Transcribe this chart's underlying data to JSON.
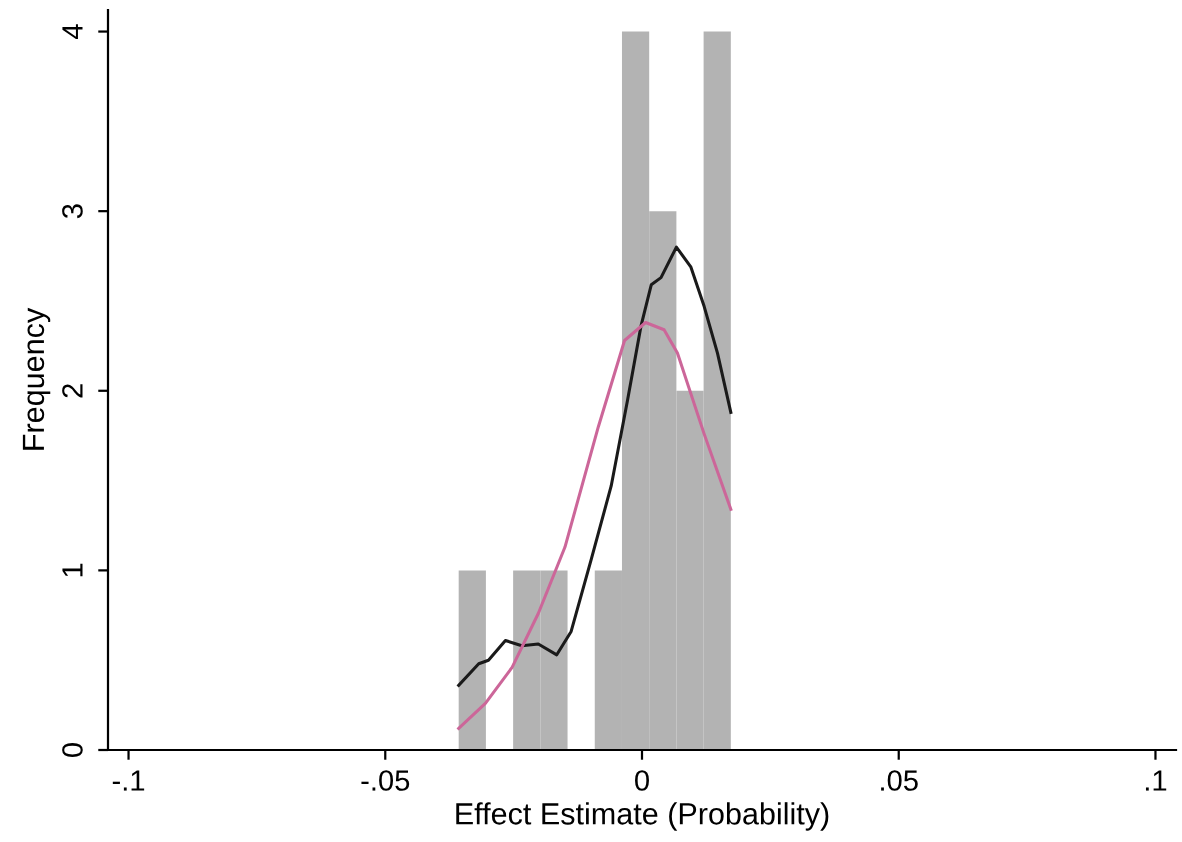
{
  "chart_data": {
    "type": "histogram",
    "xlabel": "Effect Estimate (Probability)",
    "ylabel": "Frequency",
    "bins": [
      -0.0357,
      -0.0304,
      -0.0251,
      -0.0198,
      -0.0145,
      -0.0092,
      -0.0039,
      0.0014,
      0.0067,
      0.012,
      0.0173
    ],
    "values": [
      1,
      0,
      1,
      1,
      0,
      1,
      4,
      3,
      2,
      4
    ],
    "color": "#b3b3b3",
    "series": [
      {
        "type": "line",
        "color": "#1a1a1a",
        "x": [
          -0.0357,
          -0.0318,
          -0.0299,
          -0.0266,
          -0.0234,
          -0.0202,
          -0.0166,
          -0.0138,
          -0.0099,
          -0.006,
          -0.0028,
          -0.0002,
          0.0018,
          0.0037,
          0.0067,
          0.0095,
          0.0121,
          0.0147,
          0.0173
        ],
        "values": [
          0.36,
          0.48,
          0.5,
          0.61,
          0.58,
          0.59,
          0.53,
          0.66,
          1.06,
          1.47,
          1.95,
          2.36,
          2.59,
          2.63,
          2.8,
          2.69,
          2.47,
          2.21,
          1.88
        ]
      },
      {
        "type": "line",
        "color": "#cc6699",
        "x": [
          -0.0357,
          -0.0305,
          -0.0253,
          -0.0202,
          -0.015,
          -0.0085,
          -0.0034,
          0.0007,
          0.0043,
          0.0069,
          0.0121,
          0.0173
        ],
        "values": [
          0.12,
          0.26,
          0.46,
          0.76,
          1.13,
          1.8,
          2.28,
          2.38,
          2.34,
          2.21,
          1.76,
          1.34
        ]
      }
    ],
    "xlim": [
      -0.104,
      0.104
    ],
    "xticks": [
      {
        "value": -0.1,
        "label": "-.1"
      },
      {
        "value": -0.05,
        "label": "-.05"
      },
      0,
      {
        "value": 0.05,
        "label": ".05"
      },
      {
        "value": 0.1,
        "label": ".1"
      }
    ],
    "ylim": [
      0,
      4.12
    ],
    "yticks": [
      0,
      1,
      2,
      3,
      4
    ],
    "grid": false
  }
}
